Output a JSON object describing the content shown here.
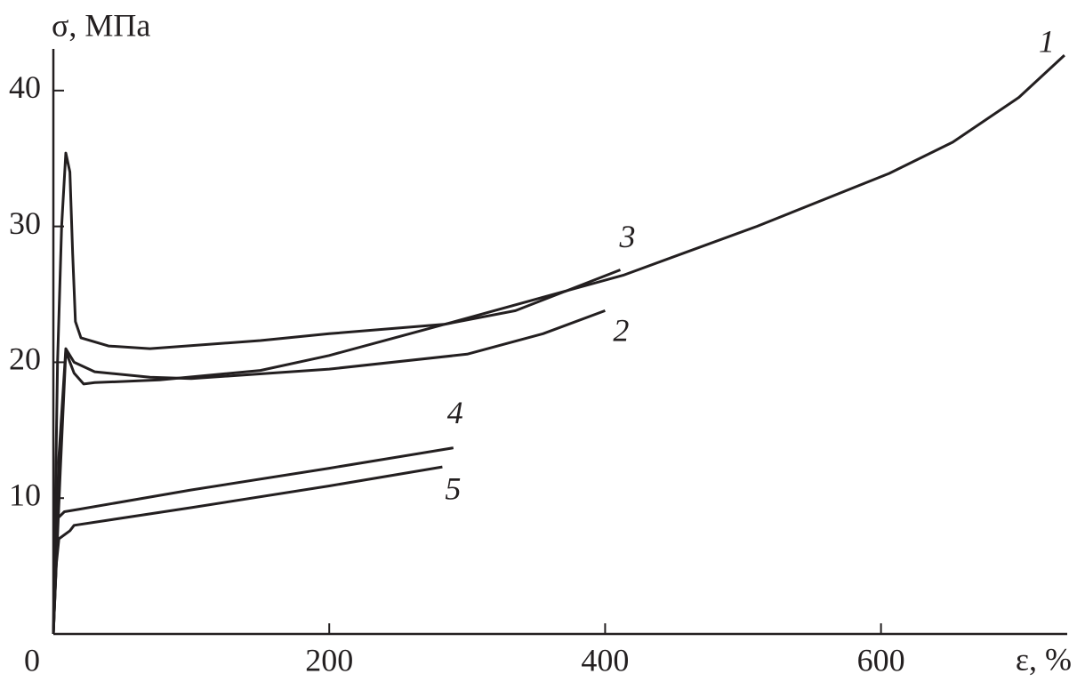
{
  "chart_data": {
    "type": "line",
    "y_label": "σ, МПа",
    "x_label": "ε, %",
    "xlim": [
      0,
      735
    ],
    "ylim": [
      0,
      43
    ],
    "xticks": [
      0,
      200,
      400,
      600
    ],
    "yticks": [
      10,
      20,
      30,
      40
    ],
    "series": [
      {
        "name": "1",
        "color": "#231f20",
        "x": [
          0,
          5,
          9,
          15,
          22,
          30,
          77,
          150,
          200,
          284,
          413,
          510,
          606,
          652,
          700,
          733
        ],
        "values": [
          0,
          12,
          20.8,
          19.2,
          18.4,
          18.5,
          18.7,
          19.4,
          20.5,
          22.8,
          26.4,
          30,
          33.9,
          36.2,
          39.5,
          42.6
        ]
      },
      {
        "name": "2",
        "color": "#231f20",
        "x": [
          0,
          4,
          9,
          15,
          30,
          70,
          100,
          200,
          300,
          355,
          400
        ],
        "values": [
          0,
          13,
          21,
          20,
          19.3,
          18.9,
          18.8,
          19.5,
          20.6,
          22.1,
          23.8
        ]
      },
      {
        "name": "3",
        "color": "#231f20",
        "x": [
          0,
          3,
          6,
          9,
          12,
          14,
          16,
          20,
          40,
          70,
          150,
          200,
          284,
          335,
          411
        ],
        "values": [
          0,
          20,
          30,
          35.4,
          34,
          28,
          23,
          21.8,
          21.2,
          21.0,
          21.6,
          22.1,
          22.8,
          23.8,
          26.8
        ]
      },
      {
        "name": "4",
        "color": "#231f20",
        "x": [
          0,
          2,
          3,
          8,
          20,
          100,
          200,
          290
        ],
        "values": [
          0,
          5,
          8.5,
          9,
          9.2,
          10.6,
          12.2,
          13.7
        ]
      },
      {
        "name": "5",
        "color": "#231f20",
        "x": [
          0,
          2,
          4,
          12,
          15,
          100,
          200,
          282
        ],
        "values": [
          0,
          5,
          7,
          7.6,
          8.0,
          9.3,
          10.9,
          12.3
        ]
      }
    ]
  }
}
